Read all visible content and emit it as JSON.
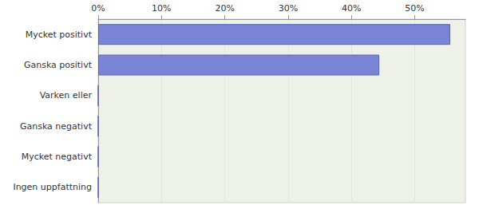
{
  "chart_data": {
    "type": "bar",
    "orientation": "horizontal",
    "categories": [
      "Mycket positivt",
      "Ganska positivt",
      "Varken eller",
      "Ganska negativt",
      "Mycket negativt",
      "Ingen uppfattning"
    ],
    "values": [
      55.6,
      44.4,
      0,
      0,
      0,
      0
    ],
    "color": "#7a84d6",
    "xlim": [
      0,
      58
    ],
    "xticks": [
      {
        "value": 0,
        "label": "0%"
      },
      {
        "value": 10,
        "label": "10%"
      },
      {
        "value": 20,
        "label": "20%"
      },
      {
        "value": 30,
        "label": "30%"
      },
      {
        "value": 40,
        "label": "40%"
      },
      {
        "value": 50,
        "label": "50%"
      }
    ],
    "grid": true
  }
}
